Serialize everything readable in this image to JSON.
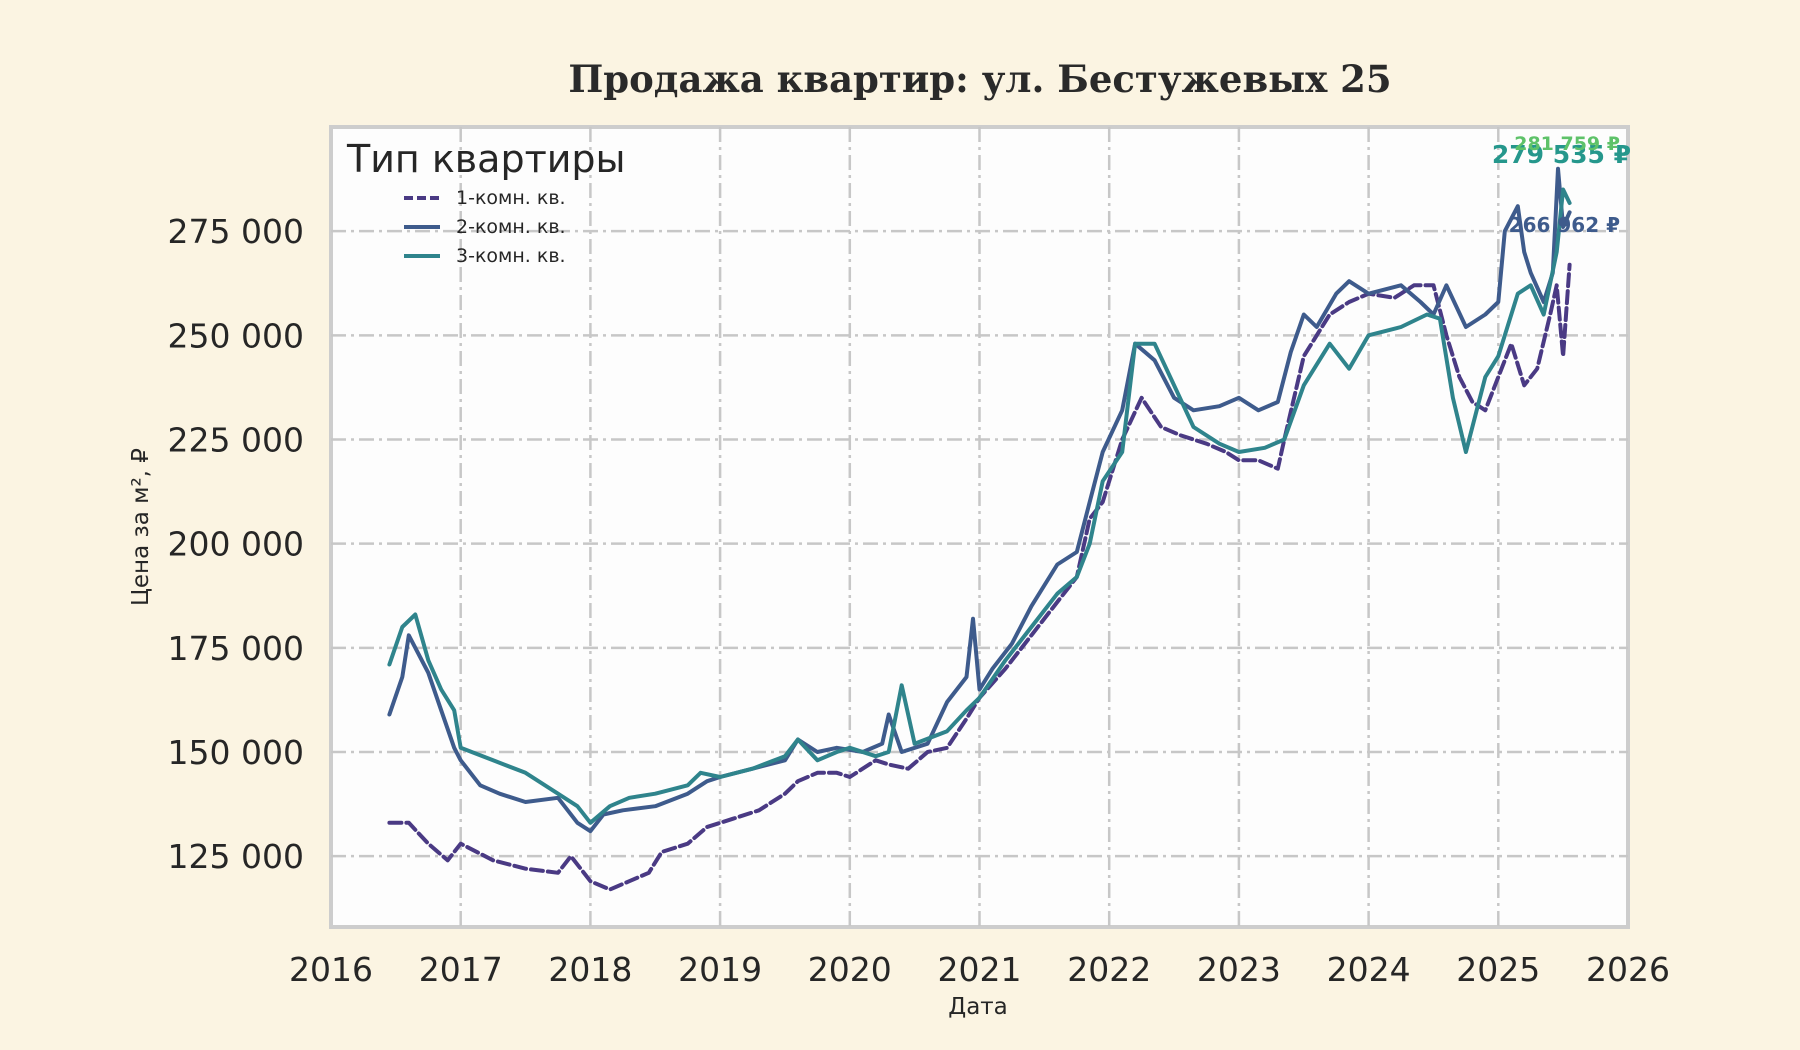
{
  "chart_data": {
    "type": "line",
    "title": "Продажа квартир: ул. Бестужевых 25",
    "xlabel": "Дата",
    "ylabel": "Цена за м², ₽",
    "xlim": [
      2016,
      2026
    ],
    "ylim": [
      108000,
      300000
    ],
    "x_ticks": [
      "2016",
      "2017",
      "2018",
      "2019",
      "2020",
      "2021",
      "2022",
      "2023",
      "2024",
      "2025",
      "2026"
    ],
    "y_ticks": [
      {
        "value": 125000,
        "label": "125 000"
      },
      {
        "value": 150000,
        "label": "150 000"
      },
      {
        "value": 175000,
        "label": "175 000"
      },
      {
        "value": 200000,
        "label": "200 000"
      },
      {
        "value": 225000,
        "label": "225 000"
      },
      {
        "value": 250000,
        "label": "250 000"
      },
      {
        "value": 275000,
        "label": "275 000"
      }
    ],
    "grid": true,
    "legend": {
      "title": "Тип квартиры",
      "position": "top-left"
    },
    "series": [
      {
        "name": "1-комн. кв.",
        "color": "#4a3a84",
        "style": "dashed",
        "end_label": "266 962 ₽",
        "x": [
          2016.45,
          2016.6,
          2016.75,
          2016.9,
          2017.0,
          2017.25,
          2017.5,
          2017.75,
          2017.85,
          2018.0,
          2018.15,
          2018.3,
          2018.45,
          2018.55,
          2018.75,
          2018.9,
          2019.1,
          2019.3,
          2019.5,
          2019.6,
          2019.75,
          2019.9,
          2020.0,
          2020.2,
          2020.3,
          2020.45,
          2020.6,
          2020.75,
          2020.9,
          2021.0,
          2021.2,
          2021.4,
          2021.6,
          2021.75,
          2021.85,
          2021.95,
          2022.1,
          2022.25,
          2022.4,
          2022.55,
          2022.75,
          2022.9,
          2023.0,
          2023.15,
          2023.3,
          2023.35,
          2023.5,
          2023.7,
          2023.85,
          2024.0,
          2024.2,
          2024.35,
          2024.5,
          2024.6,
          2024.7,
          2024.8,
          2024.9,
          2025.0,
          2025.1,
          2025.2,
          2025.3,
          2025.4,
          2025.45,
          2025.5,
          2025.55
        ],
        "y": [
          133000,
          133000,
          128000,
          124000,
          128000,
          124000,
          122000,
          121000,
          125000,
          119000,
          117000,
          119000,
          121000,
          126000,
          128000,
          132000,
          134000,
          136000,
          140000,
          143000,
          145000,
          145000,
          144000,
          148000,
          147000,
          146000,
          150000,
          151000,
          158000,
          163000,
          170000,
          178000,
          186000,
          192000,
          206000,
          210000,
          225000,
          235000,
          228000,
          226000,
          224000,
          222000,
          220000,
          220000,
          218000,
          225000,
          245000,
          255000,
          258000,
          260000,
          259000,
          262000,
          262000,
          250000,
          240000,
          234000,
          232000,
          240000,
          248000,
          238000,
          242000,
          255000,
          262000,
          245000,
          266962
        ]
      },
      {
        "name": "2-комн. кв.",
        "color": "#3e5b8c",
        "style": "solid",
        "end_label": "279 535 ₽",
        "x": [
          2016.45,
          2016.55,
          2016.6,
          2016.75,
          2016.85,
          2016.95,
          2017.0,
          2017.15,
          2017.3,
          2017.5,
          2017.75,
          2017.9,
          2018.0,
          2018.1,
          2018.25,
          2018.5,
          2018.75,
          2018.9,
          2019.0,
          2019.25,
          2019.5,
          2019.6,
          2019.75,
          2019.9,
          2020.1,
          2020.25,
          2020.3,
          2020.4,
          2020.6,
          2020.75,
          2020.9,
          2020.95,
          2021.0,
          2021.1,
          2021.25,
          2021.4,
          2021.6,
          2021.75,
          2021.85,
          2021.95,
          2022.1,
          2022.2,
          2022.35,
          2022.5,
          2022.65,
          2022.85,
          2023.0,
          2023.15,
          2023.3,
          2023.4,
          2023.5,
          2023.6,
          2023.75,
          2023.85,
          2024.0,
          2024.25,
          2024.4,
          2024.5,
          2024.6,
          2024.75,
          2024.9,
          2025.0,
          2025.05,
          2025.15,
          2025.2,
          2025.25,
          2025.35,
          2025.42,
          2025.46,
          2025.5,
          2025.55
        ],
        "y": [
          159000,
          168000,
          178000,
          169000,
          160000,
          151000,
          148000,
          142000,
          140000,
          138000,
          139000,
          133000,
          131000,
          135000,
          136000,
          137000,
          140000,
          143000,
          144000,
          146000,
          148000,
          153000,
          150000,
          151000,
          150000,
          152000,
          159000,
          150000,
          152000,
          162000,
          168000,
          182000,
          165000,
          170000,
          176000,
          185000,
          195000,
          198000,
          210000,
          222000,
          232000,
          248000,
          244000,
          235000,
          232000,
          233000,
          235000,
          232000,
          234000,
          246000,
          255000,
          252000,
          260000,
          263000,
          260000,
          262000,
          258000,
          255000,
          262000,
          252000,
          255000,
          258000,
          275000,
          281000,
          270000,
          265000,
          258000,
          265000,
          290000,
          276000,
          279535
        ]
      },
      {
        "name": "3-комн. кв.",
        "color": "#2f848c",
        "style": "solid",
        "end_label": "281 759 ₽",
        "x": [
          2016.45,
          2016.55,
          2016.65,
          2016.75,
          2016.85,
          2016.95,
          2017.0,
          2017.25,
          2017.5,
          2017.75,
          2017.9,
          2018.0,
          2018.15,
          2018.3,
          2018.5,
          2018.75,
          2018.85,
          2019.0,
          2019.25,
          2019.5,
          2019.6,
          2019.75,
          2019.9,
          2020.0,
          2020.2,
          2020.3,
          2020.4,
          2020.5,
          2020.75,
          2020.9,
          2021.0,
          2021.2,
          2021.4,
          2021.6,
          2021.75,
          2021.85,
          2021.95,
          2022.1,
          2022.2,
          2022.35,
          2022.5,
          2022.65,
          2022.85,
          2023.0,
          2023.2,
          2023.35,
          2023.5,
          2023.7,
          2023.85,
          2024.0,
          2024.25,
          2024.45,
          2024.55,
          2024.65,
          2024.75,
          2024.9,
          2025.0,
          2025.15,
          2025.25,
          2025.35,
          2025.45,
          2025.5,
          2025.55
        ],
        "y": [
          171000,
          180000,
          183000,
          172000,
          165000,
          160000,
          151000,
          148000,
          145000,
          140000,
          137000,
          133000,
          137000,
          139000,
          140000,
          142000,
          145000,
          144000,
          146000,
          149000,
          153000,
          148000,
          150000,
          151000,
          149000,
          150000,
          166000,
          152000,
          155000,
          160000,
          163000,
          172000,
          180000,
          188000,
          192000,
          200000,
          215000,
          222000,
          248000,
          248000,
          238000,
          228000,
          224000,
          222000,
          223000,
          225000,
          238000,
          248000,
          242000,
          250000,
          252000,
          255000,
          254000,
          235000,
          222000,
          240000,
          245000,
          260000,
          262000,
          255000,
          270000,
          285000,
          281759
        ]
      }
    ]
  }
}
